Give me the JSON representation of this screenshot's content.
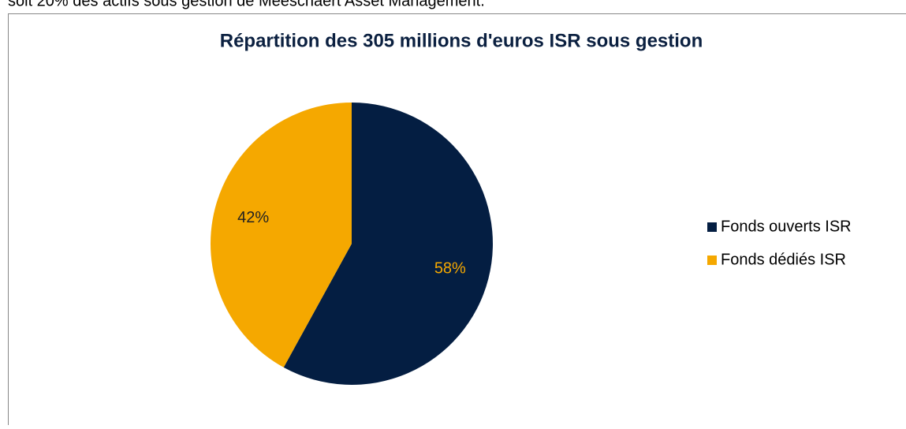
{
  "intro_text": "soit 20% des actifs sous gestion de Meeschaert Asset Management.",
  "chart_data": {
    "type": "pie",
    "title": "Répartition des 305 millions d'euros ISR sous gestion",
    "categories": [
      "Fonds ouverts ISR",
      "Fonds dédiés ISR"
    ],
    "values": [
      58,
      42
    ],
    "value_labels": [
      "58%",
      "42%"
    ],
    "colors": [
      "#041e42",
      "#f5a800"
    ],
    "label_colors": [
      "#f5a800",
      "#222222"
    ],
    "legend": "right"
  }
}
